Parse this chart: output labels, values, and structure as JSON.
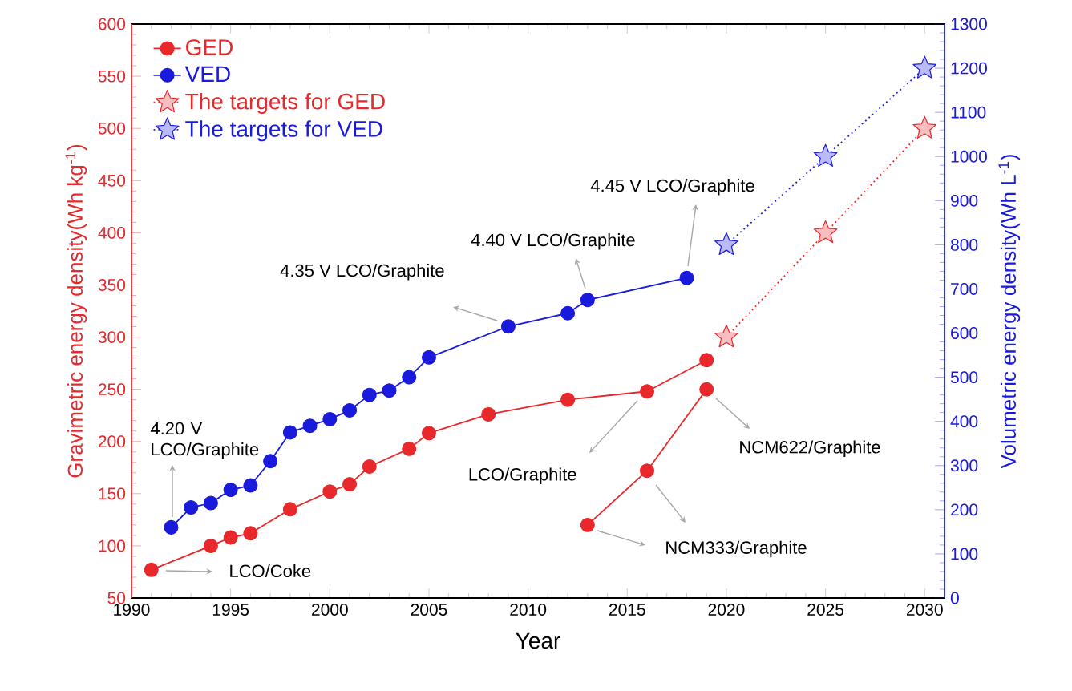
{
  "chart_data": {
    "type": "line",
    "xlabel": "Year",
    "ylabel": "Gravimetric energy density(Wh kg$^{-1}$)",
    "y2label": "Volumetric energy density(Wh L$^{-1}$)",
    "xlim": [
      1990,
      2031
    ],
    "xticks": [
      1990,
      1995,
      2000,
      2005,
      2010,
      2015,
      2020,
      2025,
      2030
    ],
    "ylim": [
      50,
      600
    ],
    "yticks": [
      50,
      100,
      150,
      200,
      250,
      300,
      350,
      400,
      450,
      500,
      550,
      600
    ],
    "y2lim": [
      0,
      1300
    ],
    "y2ticks": [
      0,
      100,
      200,
      300,
      400,
      500,
      600,
      700,
      800,
      900,
      1000,
      1100,
      1200,
      1300
    ],
    "legend": "top left",
    "series": [
      {
        "name": "GED",
        "color": "#e8282b",
        "marker": "circle",
        "line_style": "solid",
        "x": [
          1991,
          1994,
          1995,
          1996,
          1998,
          2000,
          2001,
          2002,
          2004,
          2005,
          2008,
          2012,
          2016,
          2019
        ],
        "values": [
          77,
          100,
          108,
          112,
          135,
          152,
          159,
          176,
          193,
          208,
          226,
          240,
          248,
          278
        ]
      },
      {
        "name": "VED",
        "color": "#1a1adc",
        "marker": "circle",
        "line_style": "solid",
        "axis": "y2",
        "x": [
          1992,
          1993,
          1994,
          1995,
          1996,
          1997,
          1998,
          1999,
          2000,
          2001,
          2002,
          2003,
          2004,
          2005,
          2009,
          2012,
          2013,
          2018
        ],
        "values": [
          160,
          205,
          215,
          245,
          255,
          310,
          375,
          390,
          405,
          425,
          460,
          470,
          500,
          545,
          615,
          645,
          675,
          725
        ]
      },
      {
        "color": "#e8282b",
        "marker": "circle",
        "line_style": "solid",
        "x": [
          2013,
          2016,
          2019
        ],
        "values": [
          120,
          172,
          250
        ]
      },
      {
        "name": "The targets for GED",
        "color": "#e8282b",
        "marker": "star",
        "line_style": "dotted",
        "x": [
          2020,
          2025,
          2030
        ],
        "values": [
          300,
          400,
          500
        ]
      },
      {
        "name": "The targets for VED",
        "color": "#1a1adc",
        "marker": "star",
        "line_style": "dotted",
        "axis": "y2",
        "x": [
          2020,
          2025,
          2030
        ],
        "values": [
          800,
          1000,
          1200
        ]
      }
    ],
    "annotations": [
      "LCO/Coke",
      "4.20 V LCO/Graphite",
      "4.35 V LCO/Graphite",
      "4.40 V LCO/Graphite",
      "4.45 V LCO/Graphite",
      "LCO/Graphite",
      "NCM622/Graphite",
      "NCM333/Graphite"
    ]
  }
}
